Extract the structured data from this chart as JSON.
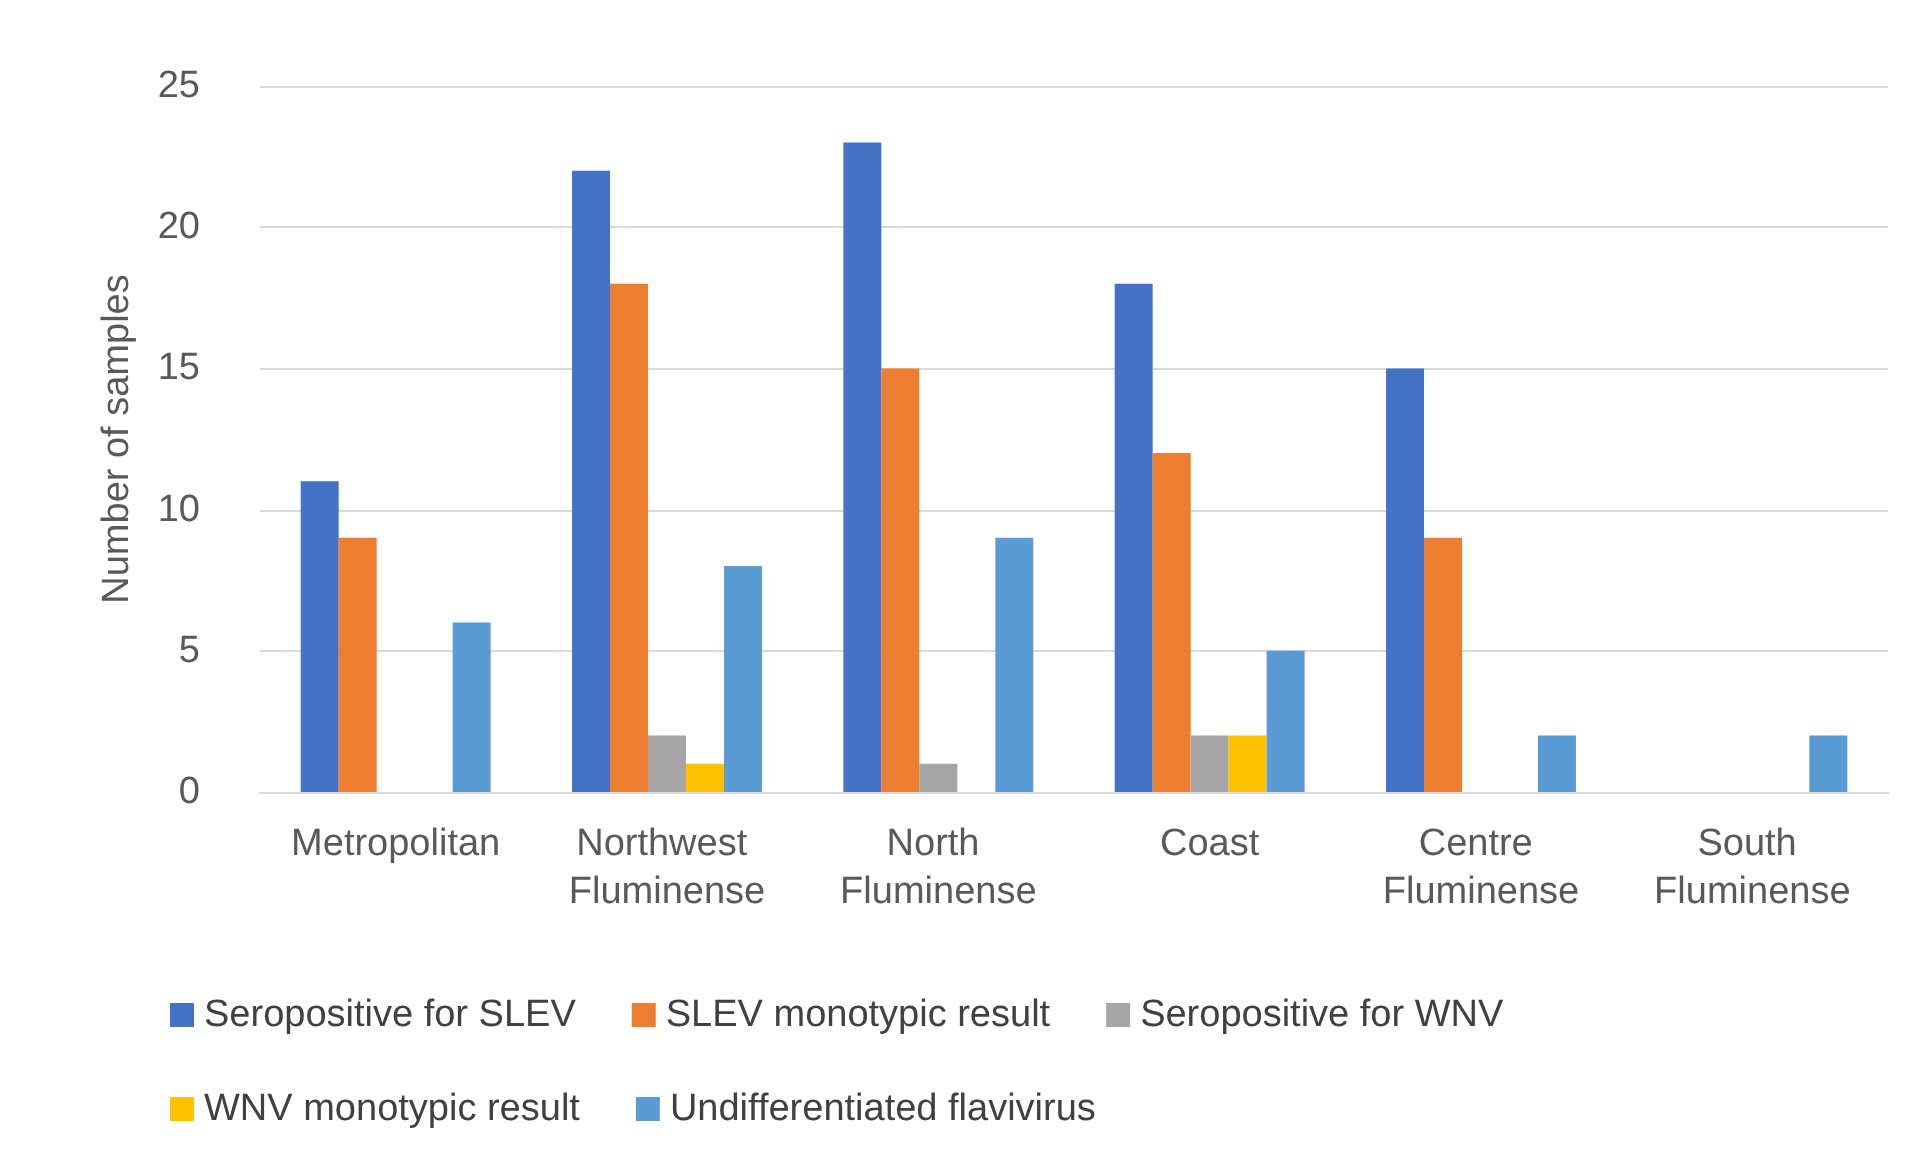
{
  "chart_data": {
    "type": "bar",
    "ylabel": "Number of samples",
    "categories": [
      "Metropolitan",
      "Northwest Fluminense",
      "North Fluminense",
      "Coast",
      "Centre Fluminense",
      "South Fluminense"
    ],
    "series": [
      {
        "name": "Seropositive for SLEV",
        "color": "#4472c4",
        "values": [
          11,
          22,
          23,
          18,
          15,
          0
        ]
      },
      {
        "name": "SLEV monotypic result",
        "color": "#ed7d31",
        "values": [
          9,
          18,
          15,
          12,
          9,
          0
        ]
      },
      {
        "name": "Seropositive for WNV",
        "color": "#a5a5a5",
        "values": [
          0,
          2,
          1,
          2,
          0,
          0
        ]
      },
      {
        "name": "WNV monotypic result",
        "color": "#ffc000",
        "values": [
          0,
          1,
          0,
          2,
          0,
          0
        ]
      },
      {
        "name": "Undifferentiated flavivirus",
        "color": "#5b9bd5",
        "values": [
          6,
          8,
          9,
          5,
          2,
          2
        ]
      }
    ],
    "ylim": [
      0,
      25
    ],
    "yticks": [
      0,
      5,
      10,
      15,
      20,
      25
    ],
    "grid": "y",
    "legend": "bottom"
  }
}
